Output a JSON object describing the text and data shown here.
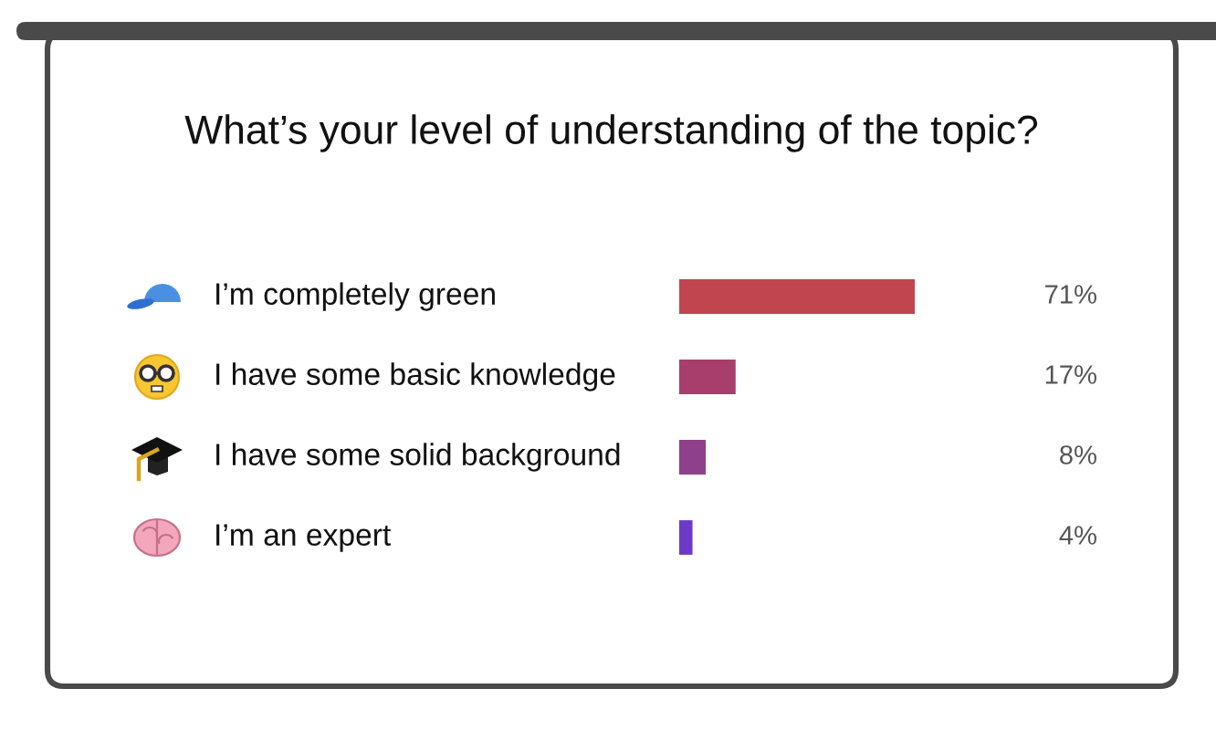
{
  "chart_data": {
    "type": "bar",
    "orientation": "horizontal",
    "title": "What’s your level of understanding of the topic?",
    "categories": [
      "I’m completely green",
      "I have some basic knowledge",
      "I have some solid background",
      "I’m an expert"
    ],
    "values": [
      71,
      17,
      8,
      4
    ],
    "colors": [
      "#c1454f",
      "#a83e6c",
      "#8f408a",
      "#6c3ac8"
    ],
    "value_labels": [
      "71%",
      "17%",
      "8%",
      "4%"
    ]
  }
}
